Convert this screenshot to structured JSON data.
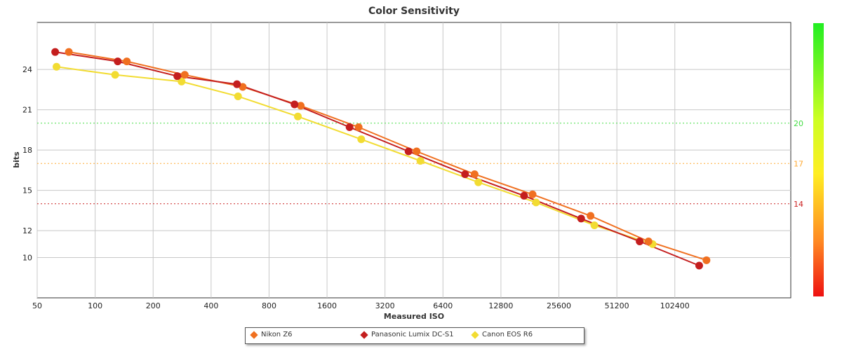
{
  "chart_data": {
    "type": "line",
    "title": "Color Sensitivity",
    "xlabel": "Measured ISO",
    "ylabel": "bits",
    "x_scale": "log2",
    "xlim": [
      50,
      409600
    ],
    "ylim": [
      7,
      27.5
    ],
    "x_ticks": [
      "50",
      "100",
      "200",
      "400",
      "800",
      "1600",
      "3200",
      "6400",
      "12800",
      "25600",
      "51200",
      "102400"
    ],
    "y_ticks": [
      "10",
      "12",
      "15",
      "18",
      "21",
      "24"
    ],
    "grid": true,
    "reference_lines": [
      {
        "value": 20,
        "label": "20",
        "color": "#44dd44"
      },
      {
        "value": 17,
        "label": "17",
        "color": "#ffaa33"
      },
      {
        "value": 14,
        "label": "14",
        "color": "#cc2222"
      }
    ],
    "series": [
      {
        "name": "Nikon Z6",
        "color": "#f07020",
        "points": [
          [
            73,
            25.3
          ],
          [
            146,
            24.6
          ],
          [
            292,
            23.6
          ],
          [
            584,
            22.7
          ],
          [
            1168,
            21.3
          ],
          [
            2335,
            19.7
          ],
          [
            4671,
            17.9
          ],
          [
            9342,
            16.2
          ],
          [
            18684,
            14.7
          ],
          [
            37368,
            13.1
          ],
          [
            74737,
            11.2
          ],
          [
            149474,
            9.8
          ]
        ]
      },
      {
        "name": "Panasonic Lumix DC-S1",
        "color": "#c41e1e",
        "points": [
          [
            62,
            25.3
          ],
          [
            131,
            24.6
          ],
          [
            267,
            23.5
          ],
          [
            545,
            22.9
          ],
          [
            1085,
            21.4
          ],
          [
            2095,
            19.7
          ],
          [
            4241,
            17.9
          ],
          [
            8335,
            16.2
          ],
          [
            16882,
            14.6
          ],
          [
            33400,
            12.9
          ],
          [
            67250,
            11.2
          ],
          [
            137000,
            9.4
          ]
        ]
      },
      {
        "name": "Canon EOS R6",
        "color": "#f2dc32",
        "points": [
          [
            63,
            24.2
          ],
          [
            127,
            23.6
          ],
          [
            281,
            23.1
          ],
          [
            552,
            22.0
          ],
          [
            1129,
            20.5
          ],
          [
            2409,
            18.8
          ],
          [
            4887,
            17.2
          ],
          [
            9770,
            15.6
          ],
          [
            19476,
            14.1
          ],
          [
            39134,
            12.4
          ],
          [
            78486,
            11.0
          ]
        ]
      }
    ],
    "legend": "bottom",
    "color_scale": {
      "label_top": "",
      "colors": [
        "#22ee22",
        "#ffff22",
        "#ff9922",
        "#ee1111"
      ]
    }
  }
}
